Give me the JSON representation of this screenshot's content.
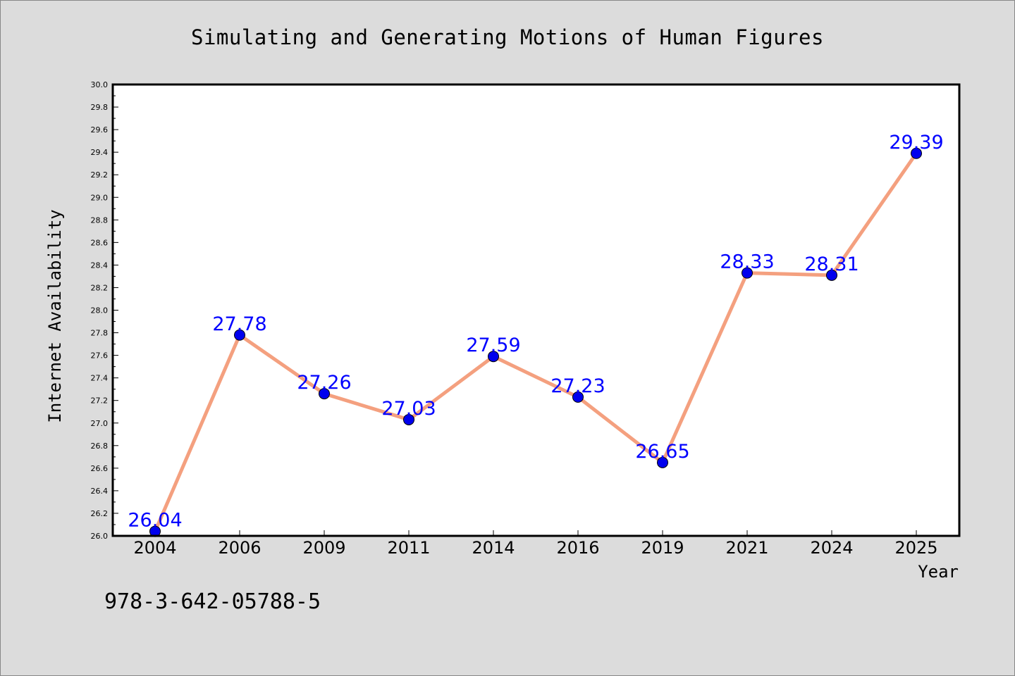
{
  "chart_data": {
    "type": "line",
    "title": "Simulating and Generating Motions of Human Figures",
    "xlabel": "Year",
    "ylabel": "Internet Availability",
    "categories": [
      "2004",
      "2006",
      "2009",
      "2011",
      "2014",
      "2016",
      "2019",
      "2021",
      "2024",
      "2025"
    ],
    "series": [
      {
        "values": [
          26.04,
          27.78,
          27.26,
          27.03,
          27.59,
          27.23,
          26.65,
          28.33,
          28.31,
          29.39
        ],
        "data_labels": [
          "26.04",
          "27.78",
          "27.26",
          "27.03",
          "27.59",
          "27.23",
          "26.65",
          "28.33",
          "28.31",
          "29.39"
        ]
      }
    ],
    "ylim": [
      26.0,
      30.0
    ],
    "yticks": [
      "26.0",
      "26.2",
      "26.4",
      "26.6",
      "26.8",
      "27.0",
      "27.2",
      "27.4",
      "27.6",
      "27.8",
      "28.0",
      "28.2",
      "28.4",
      "28.6",
      "28.8",
      "29.0",
      "29.2",
      "29.4",
      "29.6",
      "29.8",
      "30.0"
    ],
    "grid": false,
    "legend": "none",
    "colors": {
      "line": "#f4a07f",
      "marker": "#0000ee",
      "label": "#0000ff",
      "background": "#dcdcdc",
      "plot_background": "#ffffff"
    }
  },
  "footer": {
    "isbn": "978-3-642-05788-5"
  }
}
